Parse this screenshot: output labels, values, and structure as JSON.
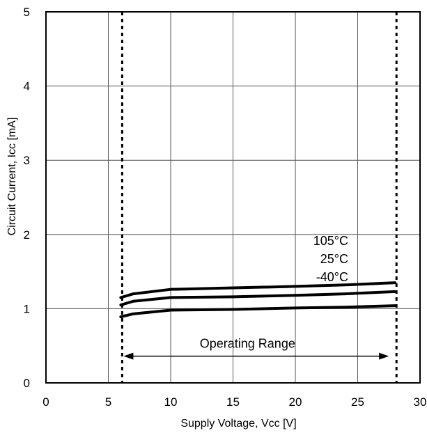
{
  "chart_data": {
    "type": "line",
    "xlabel": "Supply Voltage, Vcc [V]",
    "ylabel": "Circuit Current, Icc [mA]",
    "xlim": [
      0,
      30
    ],
    "ylim": [
      0,
      5
    ],
    "xticks": [
      0,
      5,
      10,
      15,
      20,
      25,
      30
    ],
    "yticks": [
      0,
      1,
      2,
      3,
      4,
      5
    ],
    "grid": true,
    "series": [
      {
        "name": "105°C",
        "x": [
          6,
          7,
          10,
          15,
          20,
          24,
          28
        ],
        "y": [
          1.15,
          1.2,
          1.26,
          1.28,
          1.3,
          1.32,
          1.35
        ]
      },
      {
        "name": "25°C",
        "x": [
          6,
          7,
          10,
          15,
          20,
          24,
          28
        ],
        "y": [
          1.05,
          1.1,
          1.15,
          1.16,
          1.18,
          1.2,
          1.23
        ]
      },
      {
        "name": "-40°C",
        "x": [
          6,
          7,
          10,
          15,
          20,
          24,
          28
        ],
        "y": [
          0.89,
          0.93,
          0.98,
          0.99,
          1.01,
          1.02,
          1.04
        ]
      }
    ],
    "operating_range": {
      "label": "Operating Range",
      "min": 6,
      "max": 28,
      "arrow_y": 0.36
    }
  }
}
